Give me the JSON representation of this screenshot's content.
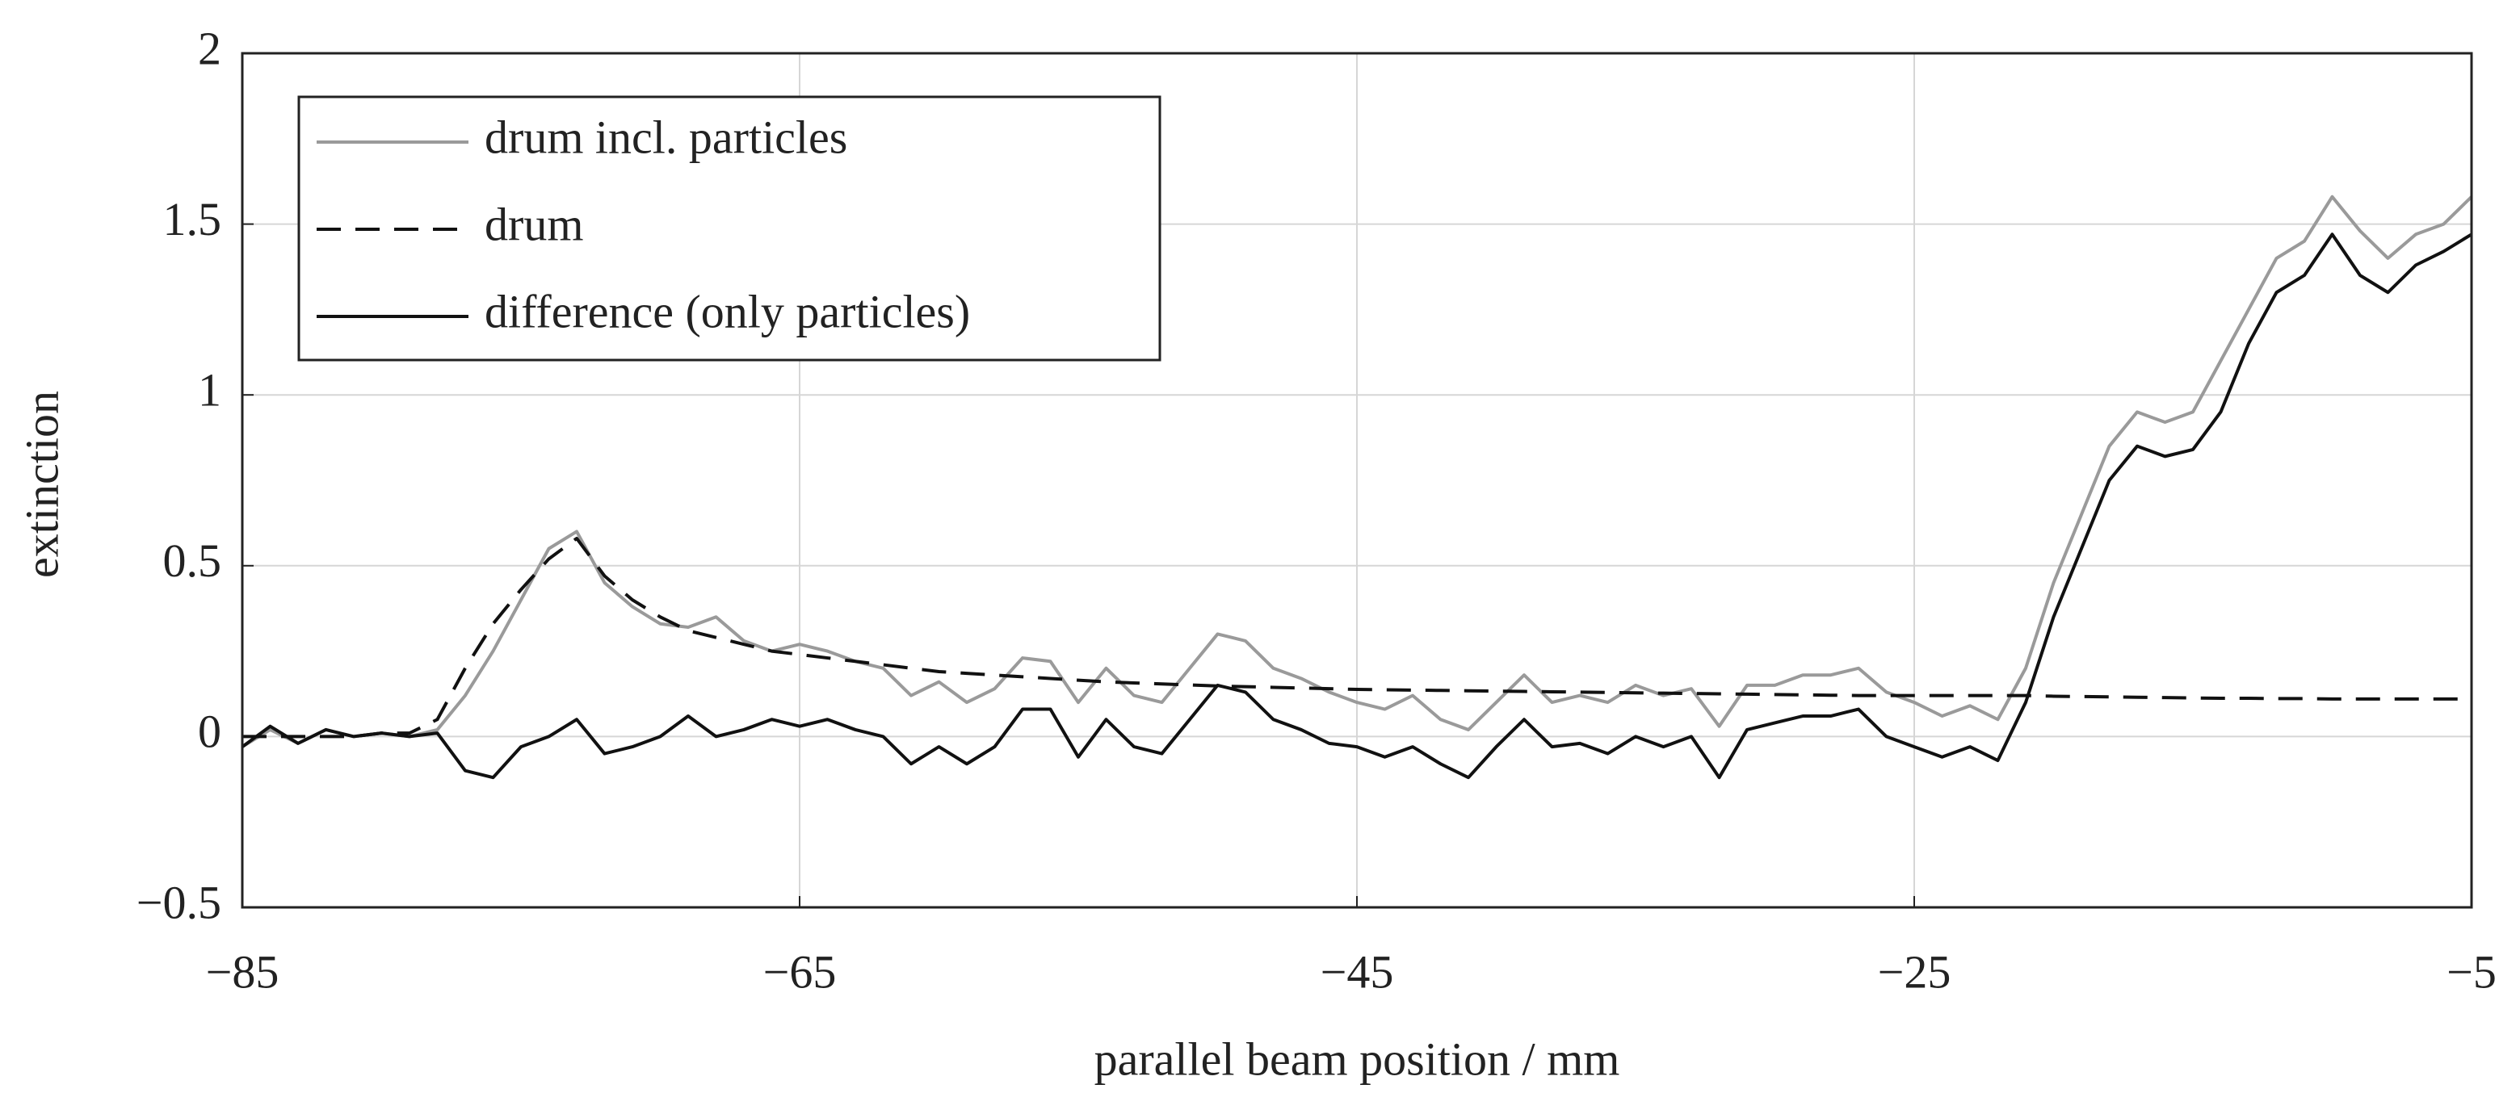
{
  "chart_data": {
    "type": "line",
    "x_label": "parallel beam position / mm",
    "y_label": "extinction",
    "x": [
      -85,
      -84,
      -83,
      -82,
      -81,
      -80,
      -79,
      -78,
      -77,
      -76,
      -75,
      -74,
      -73,
      -72,
      -71,
      -70,
      -69,
      -68,
      -67,
      -66,
      -65,
      -64,
      -63,
      -62,
      -61,
      -60,
      -59,
      -58,
      -57,
      -56,
      -55,
      -54,
      -53,
      -52,
      -51,
      -50,
      -49,
      -48,
      -47,
      -46,
      -45,
      -44,
      -43,
      -42,
      -41,
      -40,
      -39,
      -38,
      -37,
      -36,
      -35,
      -34,
      -33,
      -32,
      -31,
      -30,
      -29,
      -28,
      -27,
      -26,
      -25,
      -24,
      -23,
      -22,
      -21,
      -20,
      -19,
      -18,
      -17,
      -16,
      -15,
      -14,
      -13,
      -12,
      -11,
      -10,
      -9,
      -8,
      -7,
      -6,
      -5
    ],
    "series": [
      {
        "name": "drum incl. particles",
        "color": "#9a9a9a",
        "dash": false,
        "values": [
          -0.03,
          0.02,
          -0.02,
          0.02,
          0.0,
          0.01,
          0.0,
          0.02,
          0.12,
          0.25,
          0.4,
          0.55,
          0.6,
          0.45,
          0.38,
          0.33,
          0.32,
          0.35,
          0.28,
          0.25,
          0.27,
          0.25,
          0.22,
          0.2,
          0.12,
          0.16,
          0.1,
          0.14,
          0.23,
          0.22,
          0.1,
          0.2,
          0.12,
          0.1,
          0.2,
          0.3,
          0.28,
          0.2,
          0.17,
          0.13,
          0.1,
          0.08,
          0.12,
          0.05,
          0.02,
          0.1,
          0.18,
          0.1,
          0.12,
          0.1,
          0.15,
          0.12,
          0.14,
          0.03,
          0.15,
          0.15,
          0.18,
          0.18,
          0.2,
          0.13,
          0.1,
          0.06,
          0.09,
          0.05,
          0.2,
          0.45,
          0.65,
          0.85,
          0.95,
          0.92,
          0.95,
          1.1,
          1.25,
          1.4,
          1.45,
          1.58,
          1.48,
          1.4,
          1.47,
          1.5,
          1.58
        ]
      },
      {
        "name": "drum",
        "color": "#111111",
        "dash": true,
        "values": [
          0,
          0,
          0,
          0,
          0,
          0.01,
          0.01,
          0.05,
          0.2,
          0.33,
          0.43,
          0.52,
          0.58,
          0.47,
          0.4,
          0.35,
          0.31,
          0.29,
          0.27,
          0.25,
          0.24,
          0.23,
          0.22,
          0.21,
          0.2,
          0.19,
          0.185,
          0.18,
          0.175,
          0.17,
          0.165,
          0.16,
          0.157,
          0.154,
          0.151,
          0.148,
          0.146,
          0.144,
          0.142,
          0.14,
          0.138,
          0.137,
          0.136,
          0.135,
          0.134,
          0.133,
          0.132,
          0.131,
          0.13,
          0.129,
          0.128,
          0.127,
          0.126,
          0.125,
          0.124,
          0.123,
          0.122,
          0.121,
          0.12,
          0.12,
          0.12,
          0.12,
          0.12,
          0.12,
          0.12,
          0.118,
          0.117,
          0.116,
          0.115,
          0.114,
          0.113,
          0.112,
          0.112,
          0.111,
          0.111,
          0.11,
          0.11,
          0.11,
          0.11,
          0.11,
          0.11
        ]
      },
      {
        "name": "difference (only particles)",
        "color": "#111111",
        "dash": false,
        "values": [
          -0.03,
          0.03,
          -0.02,
          0.02,
          0.0,
          0.01,
          0.0,
          0.01,
          -0.1,
          -0.12,
          -0.03,
          0.0,
          0.05,
          -0.05,
          -0.03,
          0.0,
          0.06,
          0.0,
          0.02,
          0.05,
          0.03,
          0.05,
          0.02,
          0.0,
          -0.08,
          -0.03,
          -0.08,
          -0.03,
          0.08,
          0.08,
          -0.06,
          0.05,
          -0.03,
          -0.05,
          0.05,
          0.15,
          0.13,
          0.05,
          0.02,
          -0.02,
          -0.03,
          -0.06,
          -0.03,
          -0.08,
          -0.12,
          -0.03,
          0.05,
          -0.03,
          -0.02,
          -0.05,
          0.0,
          -0.03,
          0.0,
          -0.12,
          0.02,
          0.04,
          0.06,
          0.06,
          0.08,
          0.0,
          -0.03,
          -0.06,
          -0.03,
          -0.07,
          0.1,
          0.35,
          0.55,
          0.75,
          0.85,
          0.82,
          0.84,
          0.95,
          1.15,
          1.3,
          1.35,
          1.47,
          1.35,
          1.3,
          1.38,
          1.42,
          1.47
        ]
      }
    ],
    "xlim": [
      -85,
      -5
    ],
    "xticks": [
      {
        "value": -85,
        "label": "−85"
      },
      {
        "value": -65,
        "label": "−65"
      },
      {
        "value": -45,
        "label": "−45"
      },
      {
        "value": -25,
        "label": "−25"
      },
      {
        "value": -5,
        "label": "−5"
      }
    ],
    "ylim": [
      -0.5,
      2
    ],
    "yticks": [
      {
        "value": -0.5,
        "label": "−0.5"
      },
      0,
      0.5,
      1,
      1.5,
      2
    ],
    "grid": true,
    "legend": "upper left"
  }
}
